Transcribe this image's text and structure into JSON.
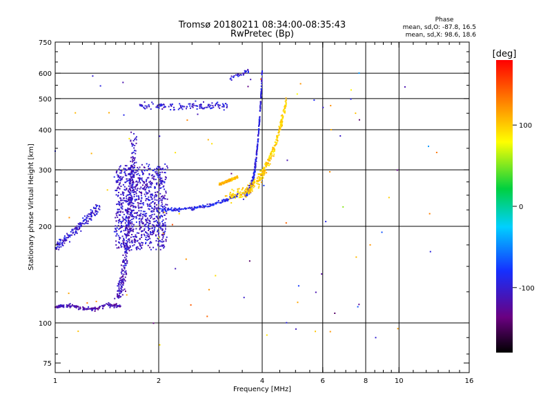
{
  "chart_data": {
    "type": "scatter",
    "title": "Tromsø 20180211 08:34:00-08:35:43",
    "subtitle": "RwPretec (Bp)",
    "xlabel": "Frequency [MHz]",
    "ylabel": "Stationary phase Virtual Height [km]",
    "xscale": "log",
    "yscale": "log",
    "xlim": [
      1,
      16
    ],
    "ylim": [
      70,
      750
    ],
    "x_ticks": [
      1,
      2,
      4,
      6,
      8,
      10,
      16
    ],
    "x_gridlines": [
      2,
      4,
      6,
      8,
      10
    ],
    "y_ticks": [
      75,
      100,
      200,
      300,
      400,
      500,
      600,
      750
    ],
    "y_gridlines": [
      100,
      200,
      300,
      400,
      500,
      600
    ],
    "grid": true,
    "stats": {
      "title": "Phase",
      "line_o": "mean, sd,O: -87.8, 16.5",
      "line_x": "mean, sd,X: 98.6, 18.6"
    },
    "colorbar": {
      "label": "[deg]",
      "range": [
        -180,
        180
      ],
      "ticks": [
        -100,
        0,
        100
      ],
      "colormap": "rainbow: black → purple → blue → cyan → green → yellow → red"
    },
    "series": [
      {
        "trace": "low-frequency E-region echo",
        "x_range": [
          1.0,
          1.55
        ],
        "height_range": [
          110,
          115
        ],
        "phase_deg": -115
      },
      {
        "trace": "retardation rise near 1.6 MHz",
        "x_range": [
          1.42,
          1.7
        ],
        "height_range": [
          120,
          380
        ],
        "phase_deg": -110
      },
      {
        "trace": "dense scatter cloud",
        "x_range": [
          1.5,
          2.1
        ],
        "height_range": [
          170,
          310
        ],
        "phase_deg": -105
      },
      {
        "trace": "low-height oblique trace",
        "x_range": [
          1.0,
          1.35
        ],
        "height_range": [
          170,
          230
        ],
        "phase_deg": -100
      },
      {
        "trace": "F-layer O-mode base",
        "x_range": [
          2.0,
          3.4
        ],
        "height_range": [
          225,
          250
        ],
        "phase_deg": -90
      },
      {
        "trace": "F-layer O-mode cusp",
        "x_range": [
          3.4,
          4.0
        ],
        "height_range": [
          250,
          610
        ],
        "phase_deg": -95
      },
      {
        "trace": "upper oblique trace",
        "x_range": [
          1.75,
          3.7
        ],
        "height_range": [
          460,
          610
        ],
        "phase_deg": -100
      },
      {
        "trace": "F-layer X-mode",
        "x_range": [
          3.1,
          4.7
        ],
        "height_range": [
          250,
          490
        ],
        "phase_deg": 100
      },
      {
        "trace": "X-mode low segment",
        "x_range": [
          3.0,
          3.4
        ],
        "height_range": [
          270,
          285
        ],
        "phase_deg": 110
      },
      {
        "trace": "sparse noise",
        "x_range": [
          1.0,
          13.0
        ],
        "height_range": [
          85,
          610
        ],
        "phase_deg": null
      }
    ]
  }
}
